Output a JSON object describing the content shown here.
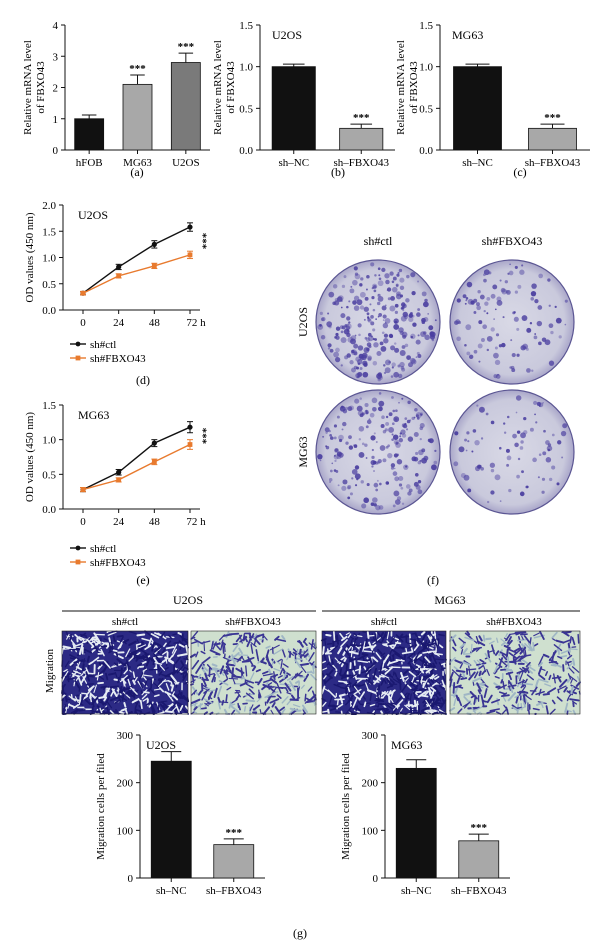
{
  "panel_labels": {
    "a": "(a)",
    "b": "(b)",
    "c": "(c)",
    "d": "(d)",
    "e": "(e)",
    "f": "(f)",
    "g": "(g)"
  },
  "chart_data": [
    {
      "id": "a",
      "type": "bar",
      "ylabel": "Relative mRNA level of FBXO43",
      "categories": [
        "hFOB",
        "MG63",
        "U2OS"
      ],
      "values": [
        1.0,
        2.1,
        2.8
      ],
      "errors": [
        0.12,
        0.3,
        0.3
      ],
      "significance": [
        "",
        "***",
        "***"
      ],
      "ylim": [
        0,
        4
      ],
      "yticks": [
        0,
        1,
        2,
        3,
        4
      ],
      "colors": [
        "#111111",
        "#a8a8a8",
        "#7a7a7a"
      ]
    },
    {
      "id": "b",
      "type": "bar",
      "title": "U2OS",
      "ylabel": "Relative mRNA level of FBXO43",
      "categories": [
        "sh–NC",
        "sh–FBXO43"
      ],
      "values": [
        1.0,
        0.26
      ],
      "errors": [
        0.03,
        0.05
      ],
      "significance": [
        "",
        "***"
      ],
      "ylim": [
        0,
        1.5
      ],
      "yticks": [
        "0.0",
        "0.5",
        "1.0",
        "1.5"
      ],
      "colors": [
        "#111111",
        "#a8a8a8"
      ]
    },
    {
      "id": "c",
      "type": "bar",
      "title": "MG63",
      "ylabel": "Relative mRNA level of FBXO43",
      "categories": [
        "sh–NC",
        "sh–FBXO43"
      ],
      "values": [
        1.0,
        0.26
      ],
      "errors": [
        0.03,
        0.05
      ],
      "significance": [
        "",
        "***"
      ],
      "ylim": [
        0,
        1.5
      ],
      "yticks": [
        "0.0",
        "0.5",
        "1.0",
        "1.5"
      ],
      "colors": [
        "#111111",
        "#a8a8a8"
      ]
    },
    {
      "id": "d",
      "type": "line",
      "title": "U2OS",
      "ylabel": "OD values (450 nm)",
      "x": [
        "0",
        "24",
        "48",
        "72 h"
      ],
      "ylim": [
        0,
        2.0
      ],
      "yticks": [
        "0.0",
        "0.5",
        "1.0",
        "1.5",
        "2.0"
      ],
      "significance": "***",
      "series": [
        {
          "name": "sh#ctl",
          "values": [
            0.32,
            0.82,
            1.25,
            1.58
          ],
          "errors": [
            0.03,
            0.05,
            0.07,
            0.08
          ],
          "color": "#111111"
        },
        {
          "name": "sh#FBXO43",
          "values": [
            0.32,
            0.65,
            0.84,
            1.05
          ],
          "errors": [
            0.03,
            0.04,
            0.05,
            0.07
          ],
          "color": "#e87a2e"
        }
      ]
    },
    {
      "id": "e",
      "type": "line",
      "title": "MG63",
      "ylabel": "OD values (450 nm)",
      "x": [
        "0",
        "24",
        "48",
        "72 h"
      ],
      "ylim": [
        0,
        1.5
      ],
      "yticks": [
        "0.0",
        "0.5",
        "1.0",
        "1.5"
      ],
      "significance": "***",
      "series": [
        {
          "name": "sh#ctl",
          "values": [
            0.28,
            0.53,
            0.95,
            1.18
          ],
          "errors": [
            0.03,
            0.04,
            0.05,
            0.08
          ],
          "color": "#111111"
        },
        {
          "name": "sh#FBXO43",
          "values": [
            0.28,
            0.42,
            0.68,
            0.93
          ],
          "errors": [
            0.03,
            0.03,
            0.04,
            0.07
          ],
          "color": "#e87a2e"
        }
      ]
    },
    {
      "id": "g1",
      "type": "bar",
      "title": "U2OS",
      "ylabel": "Migration cells per filed",
      "categories": [
        "sh–NC",
        "sh–FBXO43"
      ],
      "values": [
        245,
        70
      ],
      "errors": [
        20,
        12
      ],
      "significance": [
        "",
        "***"
      ],
      "ylim": [
        0,
        300
      ],
      "yticks": [
        0,
        100,
        200,
        300
      ],
      "colors": [
        "#111111",
        "#a8a8a8"
      ]
    },
    {
      "id": "g2",
      "type": "bar",
      "title": "MG63",
      "ylabel": "Migration cells per filed",
      "categories": [
        "sh–NC",
        "sh–FBXO43"
      ],
      "values": [
        230,
        78
      ],
      "errors": [
        18,
        14
      ],
      "significance": [
        "",
        "***"
      ],
      "ylim": [
        0,
        300
      ],
      "yticks": [
        0,
        100,
        200,
        300
      ],
      "colors": [
        "#111111",
        "#a8a8a8"
      ]
    }
  ],
  "colony_panel": {
    "columns": [
      "sh#ctl",
      "sh#FBXO43"
    ],
    "rows": [
      "U2OS",
      "MG63"
    ]
  },
  "migration_panel": {
    "groups": [
      "U2OS",
      "MG63"
    ],
    "columns": [
      "sh#ctl",
      "sh#FBXO43",
      "sh#ctl",
      "sh#FBXO43"
    ],
    "row_label": "Migration"
  }
}
